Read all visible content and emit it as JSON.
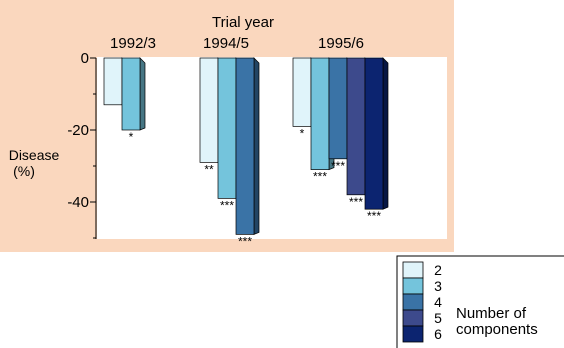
{
  "chart_data": {
    "type": "bar",
    "title": "Trial year",
    "ylabel": "Disease\n(%)",
    "ylim": [
      -50,
      0
    ],
    "yticks": [
      0,
      -20,
      -40
    ],
    "grid": false,
    "legend_title": "Number of\ncomponents",
    "legend_position": "bottom-right",
    "groups": [
      {
        "label": "1992/3",
        "bars": [
          {
            "components": "2",
            "value": -13,
            "sig": ""
          },
          {
            "components": "3",
            "value": -20,
            "sig": "*"
          }
        ]
      },
      {
        "label": "1994/5",
        "bars": [
          {
            "components": "2",
            "value": -29,
            "sig": "**"
          },
          {
            "components": "3",
            "value": -39,
            "sig": "***"
          },
          {
            "components": "4",
            "value": -49,
            "sig": "***"
          }
        ]
      },
      {
        "label": "1995/6",
        "bars": [
          {
            "components": "2",
            "value": -19,
            "sig": "*"
          },
          {
            "components": "3",
            "value": -31,
            "sig": "***"
          },
          {
            "components": "4",
            "value": -28,
            "sig": "***"
          },
          {
            "components": "5",
            "value": -38,
            "sig": "***"
          },
          {
            "components": "6",
            "value": -42,
            "sig": "***"
          }
        ]
      }
    ],
    "series": [
      {
        "name": "2",
        "color": "#e0f4fa"
      },
      {
        "name": "3",
        "color": "#74c4dc"
      },
      {
        "name": "4",
        "color": "#3a73a6"
      },
      {
        "name": "5",
        "color": "#3d4a8c"
      },
      {
        "name": "6",
        "color": "#0c2470"
      }
    ]
  },
  "colors": {
    "panel_background": "#fad7be",
    "plot_background": "#ffffff"
  }
}
